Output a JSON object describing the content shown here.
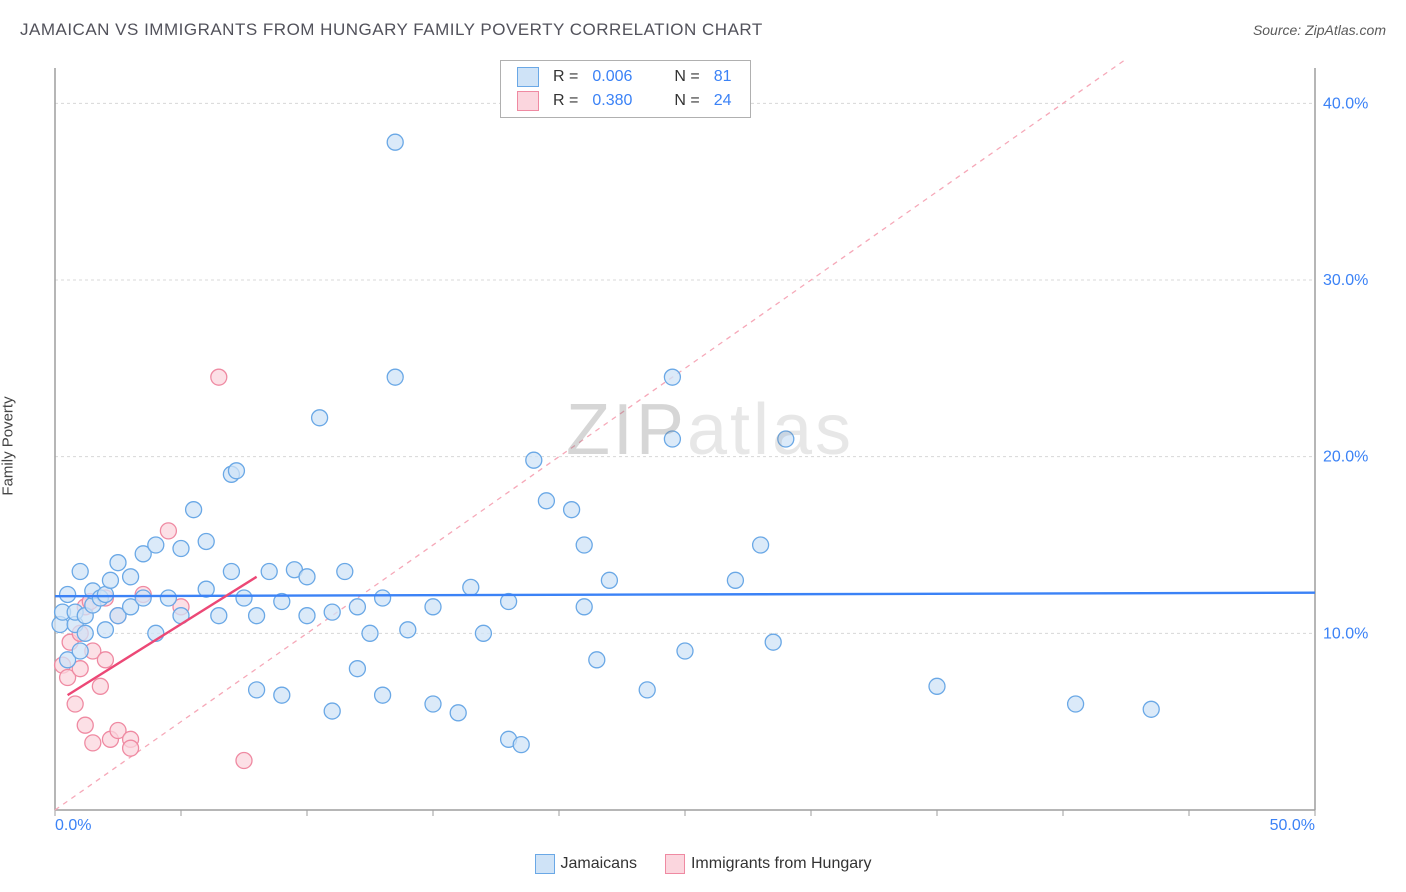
{
  "title": "JAMAICAN VS IMMIGRANTS FROM HUNGARY FAMILY POVERTY CORRELATION CHART",
  "source": "Source: ZipAtlas.com",
  "y_axis_label": "Family Poverty",
  "watermark": {
    "part1": "ZIP",
    "part2": "atlas"
  },
  "chart": {
    "type": "scatter",
    "xlim": [
      0,
      50
    ],
    "ylim": [
      0,
      42
    ],
    "x_ticks": [
      0,
      50
    ],
    "x_tick_labels": [
      "0.0%",
      "50.0%"
    ],
    "y_ticks": [
      10,
      20,
      30,
      40
    ],
    "y_tick_labels": [
      "10.0%",
      "20.0%",
      "30.0%",
      "40.0%"
    ],
    "grid_color": "#d8d8d8",
    "axis_color": "#9e9e9e",
    "background_color": "#ffffff",
    "marker_radius": 8,
    "marker_stroke_width": 1.3,
    "trend_line_width": 2.4,
    "ref_line": {
      "slope": 1.0,
      "intercept": 0.0,
      "color": "#f6a8b8",
      "dash": "5,5",
      "width": 1.3
    }
  },
  "series": [
    {
      "name": "Jamaicans",
      "fill": "#cfe3f7",
      "stroke": "#6aa8e6",
      "trend_color": "#3b82f6",
      "R": "0.006",
      "N": "81",
      "trend": {
        "x0": 0,
        "y0": 12.1,
        "x1": 50,
        "y1": 12.3
      },
      "points": [
        [
          0.2,
          10.5
        ],
        [
          0.3,
          11.2
        ],
        [
          0.5,
          8.5
        ],
        [
          0.5,
          12.2
        ],
        [
          0.8,
          10.5
        ],
        [
          0.8,
          11.2
        ],
        [
          1.0,
          9.0
        ],
        [
          1.0,
          13.5
        ],
        [
          1.2,
          10.0
        ],
        [
          1.2,
          11.0
        ],
        [
          1.5,
          11.6
        ],
        [
          1.5,
          12.4
        ],
        [
          1.8,
          12.0
        ],
        [
          2.0,
          10.2
        ],
        [
          2.0,
          12.2
        ],
        [
          2.2,
          13.0
        ],
        [
          2.5,
          11.0
        ],
        [
          2.5,
          14.0
        ],
        [
          3.0,
          11.5
        ],
        [
          3.0,
          13.2
        ],
        [
          3.5,
          12.0
        ],
        [
          3.5,
          14.5
        ],
        [
          4.0,
          10.0
        ],
        [
          4.0,
          15.0
        ],
        [
          4.5,
          12.0
        ],
        [
          5.0,
          11.0
        ],
        [
          5.0,
          14.8
        ],
        [
          5.5,
          17.0
        ],
        [
          6.0,
          12.5
        ],
        [
          6.0,
          15.2
        ],
        [
          6.5,
          11.0
        ],
        [
          7.0,
          13.5
        ],
        [
          7.0,
          19.0
        ],
        [
          7.2,
          19.2
        ],
        [
          7.5,
          12.0
        ],
        [
          8.0,
          6.8
        ],
        [
          8.0,
          11.0
        ],
        [
          8.5,
          13.5
        ],
        [
          9.0,
          6.5
        ],
        [
          9.0,
          11.8
        ],
        [
          9.5,
          13.6
        ],
        [
          10.0,
          11.0
        ],
        [
          10.0,
          13.2
        ],
        [
          10.5,
          22.2
        ],
        [
          11.0,
          5.6
        ],
        [
          11.0,
          11.2
        ],
        [
          11.5,
          13.5
        ],
        [
          12.0,
          8.0
        ],
        [
          12.0,
          11.5
        ],
        [
          12.5,
          10.0
        ],
        [
          13.0,
          6.5
        ],
        [
          13.0,
          12.0
        ],
        [
          13.5,
          24.5
        ],
        [
          13.5,
          37.8
        ],
        [
          14.0,
          10.2
        ],
        [
          15.0,
          6.0
        ],
        [
          15.0,
          11.5
        ],
        [
          16.0,
          5.5
        ],
        [
          16.5,
          12.6
        ],
        [
          17.0,
          10.0
        ],
        [
          18.0,
          4.0
        ],
        [
          18.0,
          11.8
        ],
        [
          18.5,
          3.7
        ],
        [
          19.0,
          19.8
        ],
        [
          19.5,
          17.5
        ],
        [
          20.5,
          17.0
        ],
        [
          21.0,
          11.5
        ],
        [
          21.0,
          15.0
        ],
        [
          21.5,
          8.5
        ],
        [
          22.0,
          13.0
        ],
        [
          23.5,
          6.8
        ],
        [
          24.5,
          21.0
        ],
        [
          25.0,
          9.0
        ],
        [
          27.0,
          13.0
        ],
        [
          28.0,
          15.0
        ],
        [
          28.5,
          9.5
        ],
        [
          29.0,
          21.0
        ],
        [
          35.0,
          7.0
        ],
        [
          40.5,
          6.0
        ],
        [
          43.5,
          5.7
        ],
        [
          24.5,
          24.5
        ]
      ]
    },
    {
      "name": "Immigrants from Hungary",
      "fill": "#fbd6de",
      "stroke": "#ef8aa2",
      "trend_color": "#ec4876",
      "R": "0.380",
      "N": "24",
      "trend": {
        "x0": 0.5,
        "y0": 6.5,
        "x1": 8.0,
        "y1": 13.2
      },
      "points": [
        [
          0.3,
          8.2
        ],
        [
          0.5,
          7.5
        ],
        [
          0.6,
          9.5
        ],
        [
          0.8,
          6.0
        ],
        [
          1.0,
          10.0
        ],
        [
          1.0,
          8.0
        ],
        [
          1.2,
          4.8
        ],
        [
          1.2,
          11.5
        ],
        [
          1.4,
          11.8
        ],
        [
          1.5,
          3.8
        ],
        [
          1.5,
          9.0
        ],
        [
          1.8,
          7.0
        ],
        [
          2.0,
          8.5
        ],
        [
          2.0,
          12.0
        ],
        [
          2.2,
          4.0
        ],
        [
          2.5,
          4.5
        ],
        [
          2.5,
          11.0
        ],
        [
          3.0,
          4.0
        ],
        [
          3.0,
          3.5
        ],
        [
          3.5,
          12.2
        ],
        [
          4.5,
          15.8
        ],
        [
          5.0,
          11.5
        ],
        [
          6.5,
          24.5
        ],
        [
          7.5,
          2.8
        ]
      ]
    }
  ],
  "stats_box": {
    "rows": [
      {
        "swatch_series": 0,
        "R_label": "R =",
        "R_val": "0.006",
        "N_label": "N =",
        "N_val": "81"
      },
      {
        "swatch_series": 1,
        "R_label": "R =",
        "R_val": "0.380",
        "N_label": "N =",
        "N_val": "24"
      }
    ]
  },
  "legend": {
    "items": [
      {
        "series": 0,
        "label": "Jamaicans"
      },
      {
        "series": 1,
        "label": "Immigrants from Hungary"
      }
    ]
  }
}
